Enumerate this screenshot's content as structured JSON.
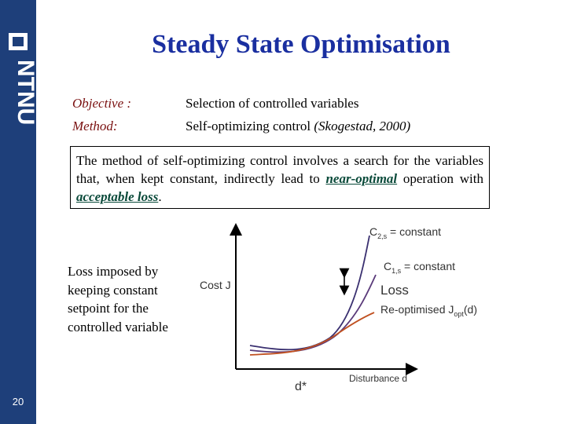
{
  "slide": {
    "title": "Steady State Optimisation",
    "page_number": "20",
    "logo_text": "NTNU"
  },
  "info": {
    "objective_label": "Objective :",
    "objective_value": "Selection of controlled variables",
    "method_label": "Method:",
    "method_value": "Self-optimizing control",
    "method_citation": "(Skogestad, 2000)"
  },
  "description": {
    "part1": "The method of self-optimizing control involves a search for the variables that, when kept constant, indirectly lead to ",
    "em1": "near-optimal",
    "part2": " operation with ",
    "em2": "acceptable loss",
    "part3": "."
  },
  "loss_note": "Loss imposed by keeping constant setpoint for the controlled variable",
  "diagram": {
    "y_axis_label": "Cost J",
    "x_axis_label": "Disturbance d",
    "d_star_label": "d*",
    "curve1_prefix": "C",
    "curve1_sub": "2,s",
    "curve1_suffix": " = constant",
    "curve2_prefix": "C",
    "curve2_sub": "1,s",
    "curve2_suffix": " = constant",
    "loss_label": "Loss",
    "reopt_prefix": "Re-optimised J",
    "reopt_sub": "opt",
    "reopt_suffix": "(d)",
    "colors": {
      "curve_c2": "#3a3070",
      "curve_c1": "#5a3a7a",
      "curve_opt": "#c05020",
      "axis": "#000000"
    }
  }
}
